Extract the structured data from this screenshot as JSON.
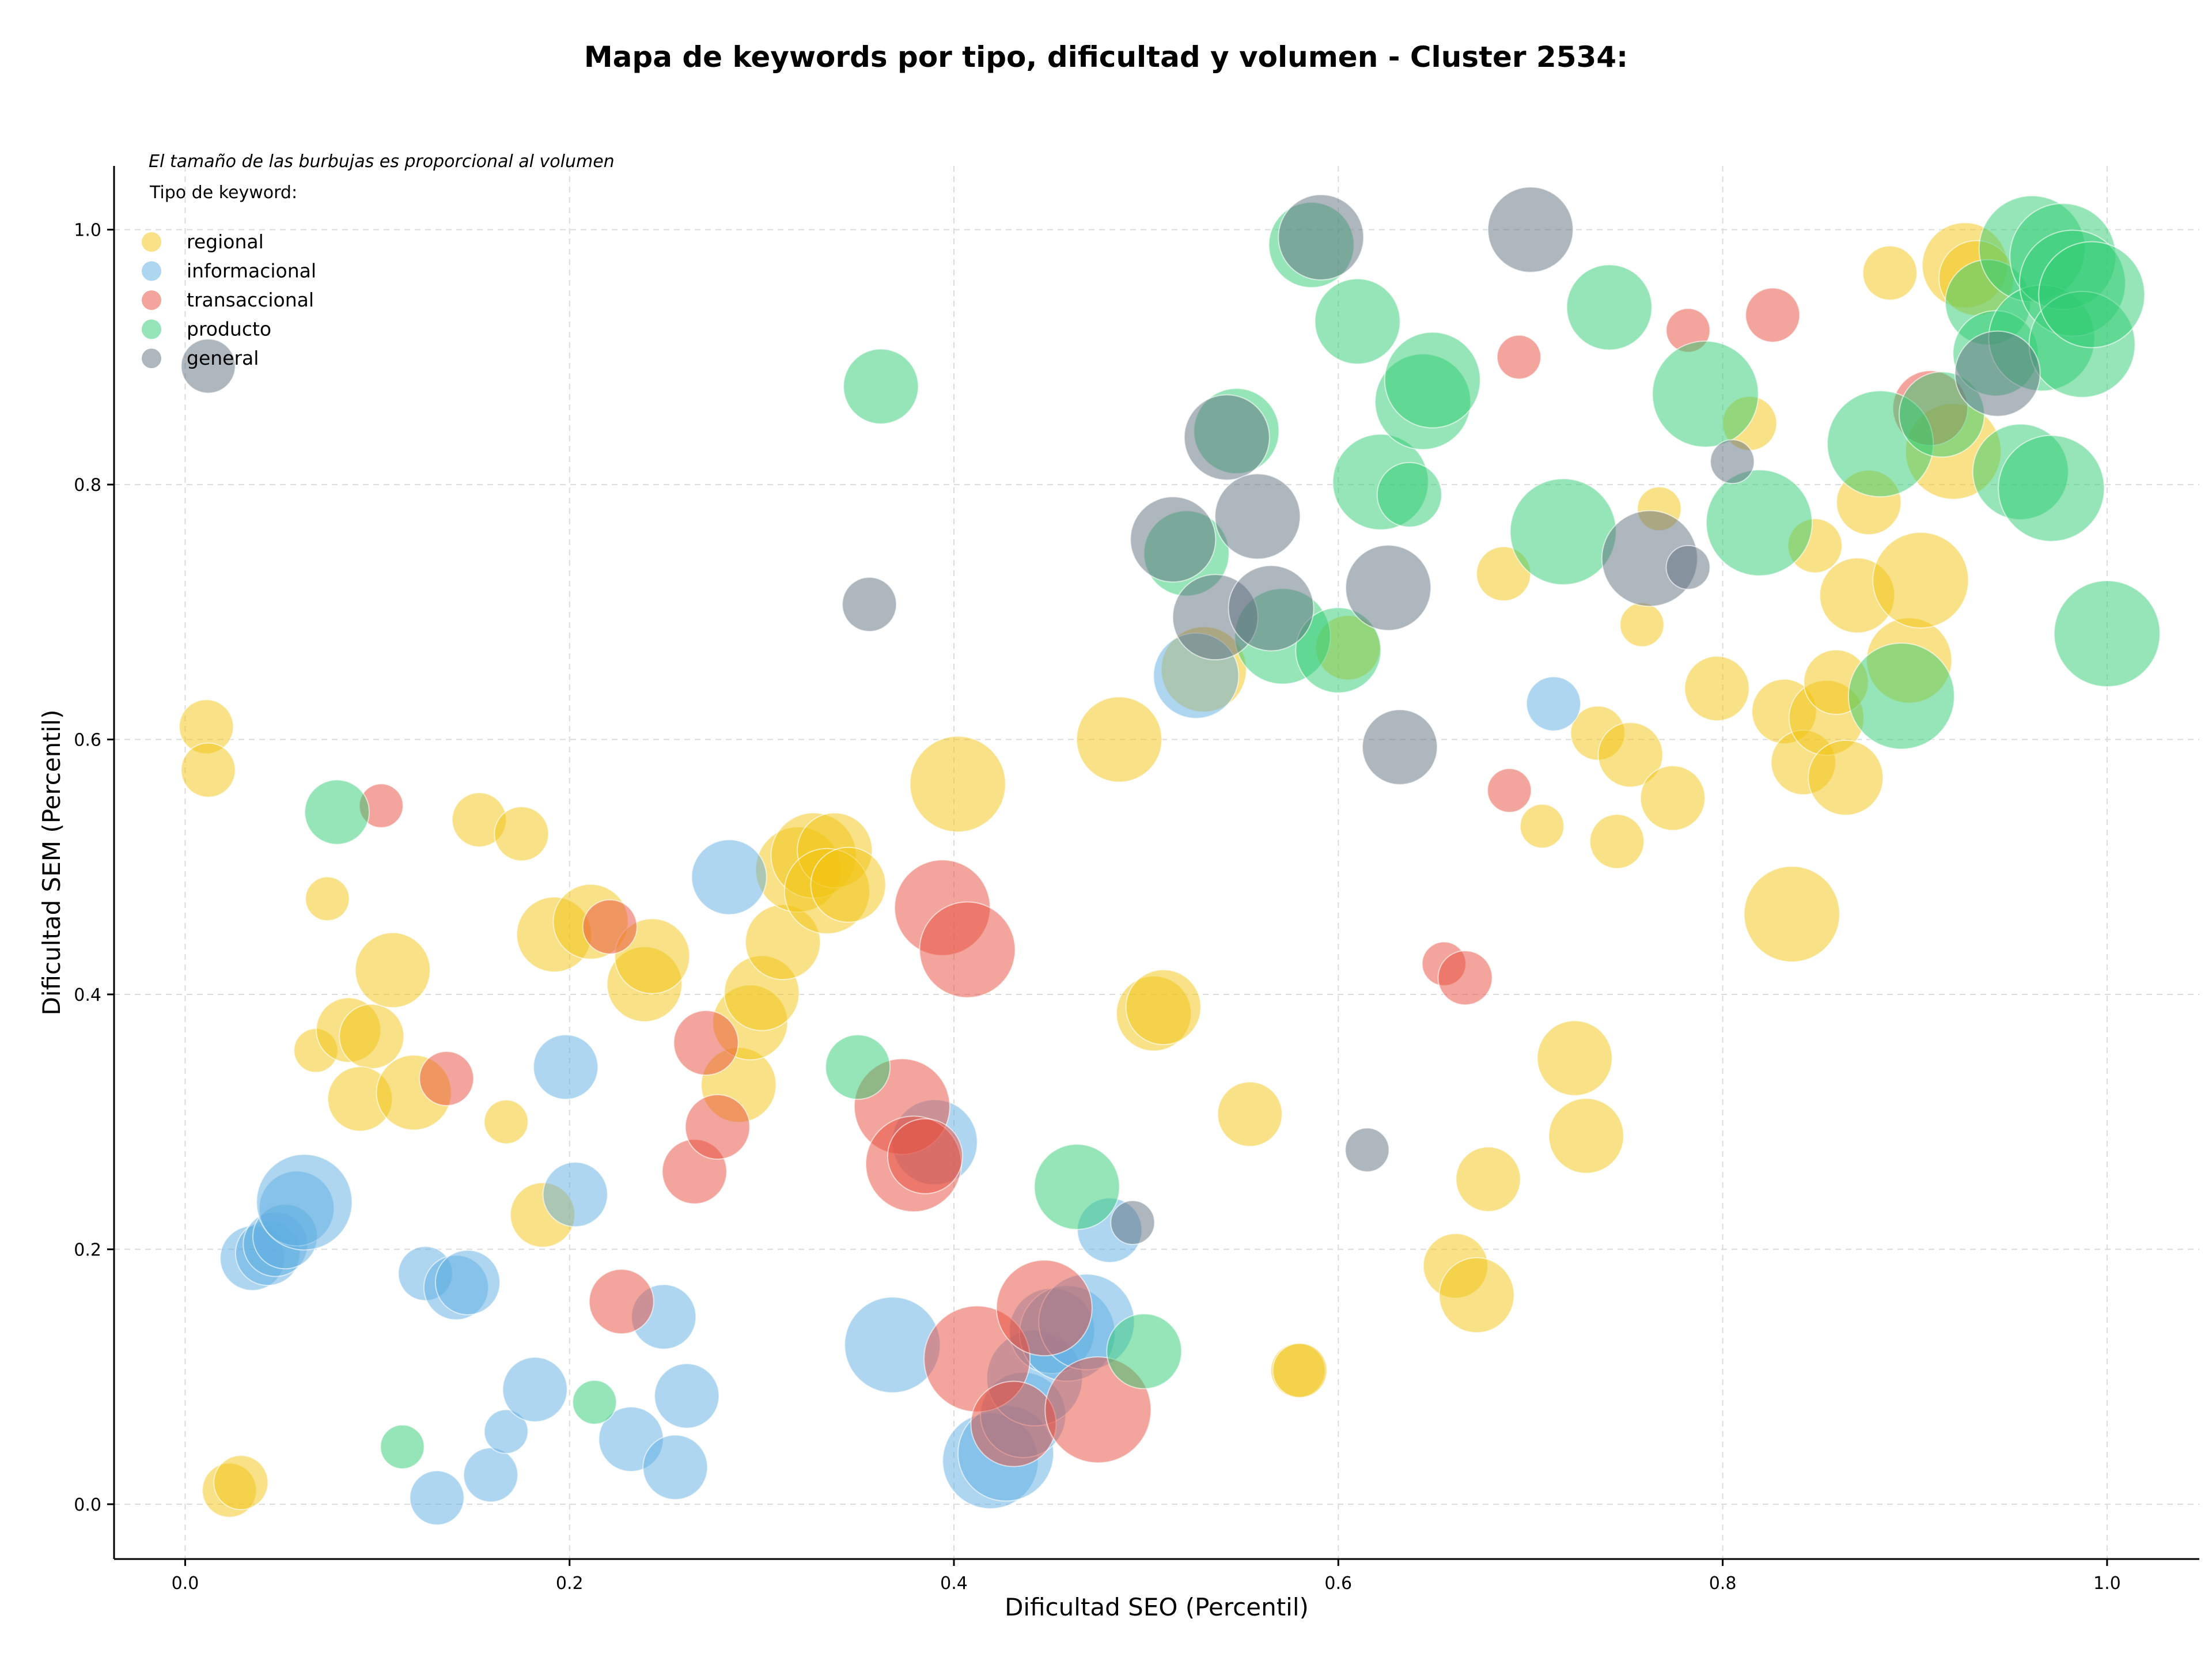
{
  "chart_data": {
    "type": "scatter",
    "title": "Mapa de keywords por tipo, dificultad y volumen - Cluster 2534:",
    "xlabel": "Dificultad SEO (Percentil)",
    "ylabel": "Dificultad SEM (Percentil)",
    "note": "El tamaño de las burbujas es proporcional al volumen",
    "legend_title": "Tipo de keyword:",
    "legend_position": "top-left",
    "xlim": [
      -0.037,
      1.048
    ],
    "ylim": [
      -0.043,
      1.05
    ],
    "xticks": [
      "0.0",
      "0.2",
      "0.4",
      "0.6",
      "0.8",
      "1.0"
    ],
    "yticks": [
      "0.0",
      "0.2",
      "0.4",
      "0.6",
      "0.8",
      "1.0"
    ],
    "grid": true,
    "series": [
      {
        "name": "regional",
        "color": "#f1c40f",
        "points": [
          [
            0.011,
            0.61,
            3
          ],
          [
            0.012,
            0.576,
            3
          ],
          [
            0.023,
            0.011,
            3
          ],
          [
            0.029,
            0.017,
            3
          ],
          [
            0.074,
            0.475,
            2
          ],
          [
            0.068,
            0.356,
            2
          ],
          [
            0.085,
            0.372,
            4
          ],
          [
            0.097,
            0.367,
            4
          ],
          [
            0.091,
            0.318,
            4
          ],
          [
            0.108,
            0.419,
            5
          ],
          [
            0.119,
            0.323,
            5
          ],
          [
            0.153,
            0.537,
            3
          ],
          [
            0.175,
            0.526,
            3
          ],
          [
            0.167,
            0.3,
            2
          ],
          [
            0.192,
            0.447,
            5
          ],
          [
            0.211,
            0.457,
            5
          ],
          [
            0.186,
            0.227,
            4
          ],
          [
            0.239,
            0.408,
            5
          ],
          [
            0.243,
            0.43,
            5
          ],
          [
            0.288,
            0.329,
            5
          ],
          [
            0.294,
            0.378,
            5
          ],
          [
            0.3,
            0.401,
            5
          ],
          [
            0.311,
            0.441,
            5
          ],
          [
            0.319,
            0.498,
            6
          ],
          [
            0.327,
            0.509,
            6
          ],
          [
            0.338,
            0.513,
            5
          ],
          [
            0.334,
            0.481,
            6
          ],
          [
            0.345,
            0.486,
            5
          ],
          [
            0.402,
            0.565,
            7
          ],
          [
            0.486,
            0.6,
            6
          ],
          [
            0.504,
            0.385,
            5
          ],
          [
            0.509,
            0.39,
            5
          ],
          [
            0.53,
            0.655,
            6
          ],
          [
            0.554,
            0.306,
            4
          ],
          [
            0.579,
            0.105,
            3
          ],
          [
            0.58,
            0.105,
            3
          ],
          [
            0.605,
            0.672,
            4
          ],
          [
            0.661,
            0.187,
            4
          ],
          [
            0.672,
            0.164,
            5
          ],
          [
            0.678,
            0.255,
            4
          ],
          [
            0.686,
            0.73,
            3
          ],
          [
            0.706,
            0.532,
            2
          ],
          [
            0.723,
            0.35,
            5
          ],
          [
            0.729,
            0.289,
            5
          ],
          [
            0.735,
            0.605,
            3
          ],
          [
            0.745,
            0.52,
            3
          ],
          [
            0.752,
            0.588,
            4
          ],
          [
            0.758,
            0.69,
            2
          ],
          [
            0.767,
            0.781,
            2
          ],
          [
            0.774,
            0.554,
            4
          ],
          [
            0.797,
            0.64,
            4
          ],
          [
            0.814,
            0.848,
            3
          ],
          [
            0.832,
            0.622,
            4
          ],
          [
            0.836,
            0.463,
            7
          ],
          [
            0.842,
            0.582,
            4
          ],
          [
            0.848,
            0.752,
            3
          ],
          [
            0.854,
            0.617,
            5
          ],
          [
            0.859,
            0.645,
            4
          ],
          [
            0.864,
            0.57,
            5
          ],
          [
            0.87,
            0.713,
            5
          ],
          [
            0.876,
            0.786,
            4
          ],
          [
            0.887,
            0.966,
            3
          ],
          [
            0.897,
            0.662,
            6
          ],
          [
            0.903,
            0.725,
            7
          ],
          [
            0.92,
            0.826,
            7
          ],
          [
            0.926,
            0.972,
            6
          ],
          [
            0.932,
            0.962,
            5
          ]
        ]
      },
      {
        "name": "informacional",
        "color": "#5dade2",
        "points": [
          [
            0.035,
            0.193,
            4
          ],
          [
            0.043,
            0.197,
            4
          ],
          [
            0.047,
            0.204,
            4
          ],
          [
            0.052,
            0.21,
            4
          ],
          [
            0.058,
            0.232,
            5
          ],
          [
            0.062,
            0.237,
            7
          ],
          [
            0.125,
            0.181,
            3
          ],
          [
            0.131,
            0.005,
            3
          ],
          [
            0.141,
            0.17,
            4
          ],
          [
            0.147,
            0.174,
            4
          ],
          [
            0.159,
            0.023,
            3
          ],
          [
            0.167,
            0.057,
            2
          ],
          [
            0.182,
            0.09,
            4
          ],
          [
            0.198,
            0.343,
            4
          ],
          [
            0.203,
            0.243,
            4
          ],
          [
            0.232,
            0.051,
            4
          ],
          [
            0.249,
            0.147,
            4
          ],
          [
            0.255,
            0.029,
            4
          ],
          [
            0.261,
            0.085,
            4
          ],
          [
            0.283,
            0.492,
            5
          ],
          [
            0.368,
            0.125,
            7
          ],
          [
            0.39,
            0.284,
            6
          ],
          [
            0.419,
            0.034,
            7
          ],
          [
            0.427,
            0.04,
            7
          ],
          [
            0.436,
            0.07,
            6
          ],
          [
            0.442,
            0.099,
            7
          ],
          [
            0.451,
            0.136,
            6
          ],
          [
            0.459,
            0.134,
            7
          ],
          [
            0.469,
            0.143,
            7
          ],
          [
            0.481,
            0.215,
            4
          ],
          [
            0.526,
            0.65,
            6
          ],
          [
            0.712,
            0.628,
            3
          ]
        ]
      },
      {
        "name": "transaccional",
        "color": "#e74c3c",
        "points": [
          [
            0.102,
            0.548,
            2
          ],
          [
            0.136,
            0.334,
            3
          ],
          [
            0.221,
            0.453,
            3
          ],
          [
            0.227,
            0.159,
            4
          ],
          [
            0.265,
            0.261,
            4
          ],
          [
            0.271,
            0.362,
            4
          ],
          [
            0.277,
            0.296,
            4
          ],
          [
            0.373,
            0.312,
            7
          ],
          [
            0.379,
            0.267,
            7
          ],
          [
            0.385,
            0.273,
            5
          ],
          [
            0.394,
            0.468,
            7
          ],
          [
            0.407,
            0.435,
            7
          ],
          [
            0.412,
            0.114,
            8
          ],
          [
            0.431,
            0.063,
            6
          ],
          [
            0.447,
            0.154,
            7
          ],
          [
            0.475,
            0.074,
            8
          ],
          [
            0.655,
            0.424,
            2
          ],
          [
            0.666,
            0.413,
            3
          ],
          [
            0.689,
            0.56,
            2
          ],
          [
            0.694,
            0.9,
            2
          ],
          [
            0.782,
            0.921,
            2
          ],
          [
            0.826,
            0.933,
            3
          ],
          [
            0.908,
            0.86,
            5
          ]
        ]
      },
      {
        "name": "producto",
        "color": "#2ecc71",
        "points": [
          [
            0.079,
            0.543,
            4
          ],
          [
            0.113,
            0.045,
            2
          ],
          [
            0.213,
            0.08,
            2
          ],
          [
            0.35,
            0.343,
            4
          ],
          [
            0.362,
            0.877,
            5
          ],
          [
            0.464,
            0.249,
            6
          ],
          [
            0.499,
            0.12,
            5
          ],
          [
            0.521,
            0.746,
            6
          ],
          [
            0.547,
            0.842,
            6
          ],
          [
            0.571,
            0.681,
            7
          ],
          [
            0.586,
            0.988,
            6
          ],
          [
            0.6,
            0.67,
            6
          ],
          [
            0.61,
            0.928,
            6
          ],
          [
            0.622,
            0.802,
            7
          ],
          [
            0.637,
            0.792,
            4
          ],
          [
            0.644,
            0.865,
            7
          ],
          [
            0.649,
            0.882,
            7
          ],
          [
            0.717,
            0.763,
            8
          ],
          [
            0.741,
            0.939,
            6
          ],
          [
            0.791,
            0.871,
            8
          ],
          [
            0.819,
            0.77,
            8
          ],
          [
            0.882,
            0.832,
            8
          ],
          [
            0.893,
            0.634,
            8
          ],
          [
            0.914,
            0.855,
            6
          ],
          [
            0.938,
            0.943,
            6
          ],
          [
            0.942,
            0.903,
            6
          ],
          [
            0.955,
            0.81,
            7
          ],
          [
            0.961,
            0.985,
            8
          ],
          [
            0.966,
            0.915,
            8
          ],
          [
            0.971,
            0.797,
            8
          ],
          [
            0.977,
            0.979,
            8
          ],
          [
            0.982,
            0.958,
            8
          ],
          [
            0.987,
            0.91,
            8
          ],
          [
            0.992,
            0.949,
            8
          ],
          [
            1.0,
            0.683,
            8
          ]
        ]
      },
      {
        "name": "general",
        "color": "#5d6d7e",
        "points": [
          [
            0.012,
            0.893,
            3
          ],
          [
            0.356,
            0.706,
            3
          ],
          [
            0.493,
            0.221,
            2
          ],
          [
            0.514,
            0.757,
            6
          ],
          [
            0.536,
            0.696,
            6
          ],
          [
            0.542,
            0.837,
            6
          ],
          [
            0.558,
            0.775,
            6
          ],
          [
            0.565,
            0.703,
            6
          ],
          [
            0.591,
            0.994,
            6
          ],
          [
            0.615,
            0.278,
            2
          ],
          [
            0.626,
            0.719,
            6
          ],
          [
            0.632,
            0.594,
            5
          ],
          [
            0.7,
            1.0,
            6
          ],
          [
            0.762,
            0.742,
            7
          ],
          [
            0.782,
            0.735,
            2
          ],
          [
            0.805,
            0.818,
            2
          ],
          [
            0.943,
            0.887,
            6
          ]
        ]
      }
    ]
  }
}
